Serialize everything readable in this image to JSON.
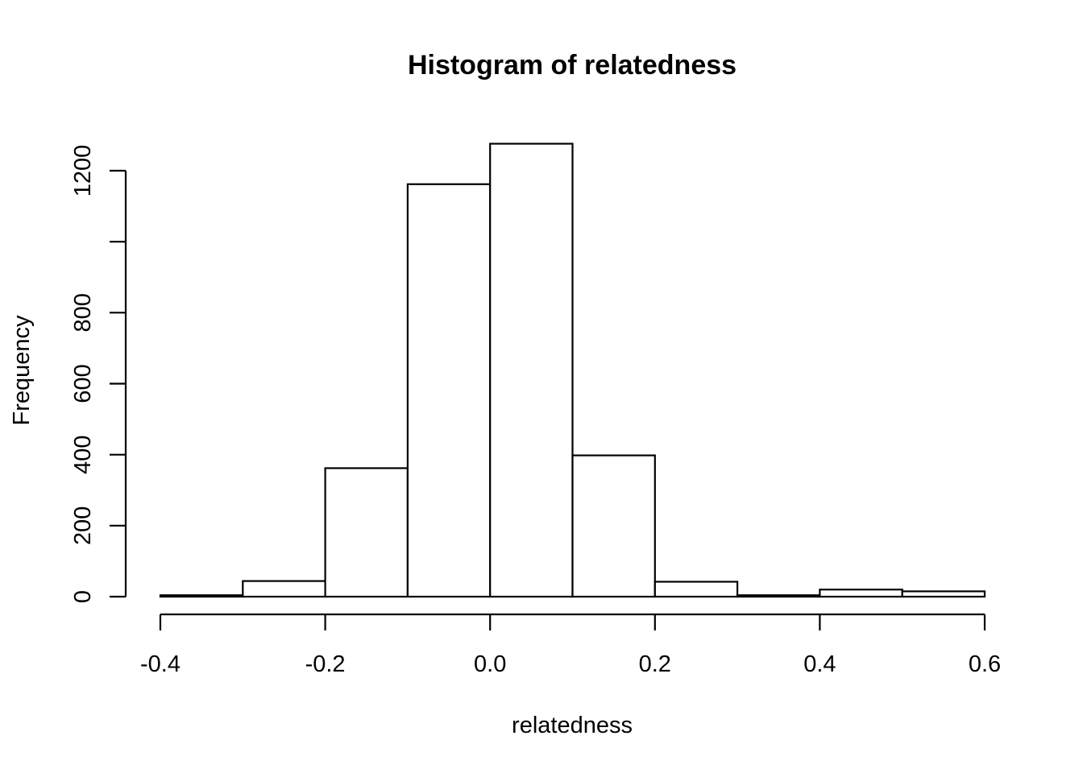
{
  "chart_data": {
    "type": "bar",
    "title": "Histogram of relatedness",
    "xlabel": "relatedness",
    "ylabel": "Frequency",
    "bins": [
      {
        "start": -0.4,
        "end": -0.3,
        "count": 4
      },
      {
        "start": -0.3,
        "end": -0.2,
        "count": 44
      },
      {
        "start": -0.2,
        "end": -0.1,
        "count": 362
      },
      {
        "start": -0.1,
        "end": 0.0,
        "count": 1162
      },
      {
        "start": 0.0,
        "end": 0.1,
        "count": 1276
      },
      {
        "start": 0.1,
        "end": 0.2,
        "count": 398
      },
      {
        "start": 0.2,
        "end": 0.3,
        "count": 42
      },
      {
        "start": 0.3,
        "end": 0.4,
        "count": 4
      },
      {
        "start": 0.4,
        "end": 0.5,
        "count": 20
      },
      {
        "start": 0.5,
        "end": 0.6,
        "count": 15
      }
    ],
    "xlim": [
      -0.4,
      0.6
    ],
    "ylim": [
      0,
      1276
    ],
    "x_ticks": [
      -0.4,
      -0.2,
      0.0,
      0.2,
      0.4,
      0.6
    ],
    "x_tick_labels": [
      "-0.4",
      "-0.2",
      "0.0",
      "0.2",
      "0.4",
      "0.6"
    ],
    "y_ticks": [
      0,
      200,
      400,
      600,
      800,
      1000,
      1200
    ],
    "y_tick_labels": [
      "0",
      "200",
      "400",
      "600",
      "800",
      "",
      "1200"
    ],
    "grid": false,
    "bar_fill": "#ffffff",
    "bar_stroke": "#000000"
  }
}
